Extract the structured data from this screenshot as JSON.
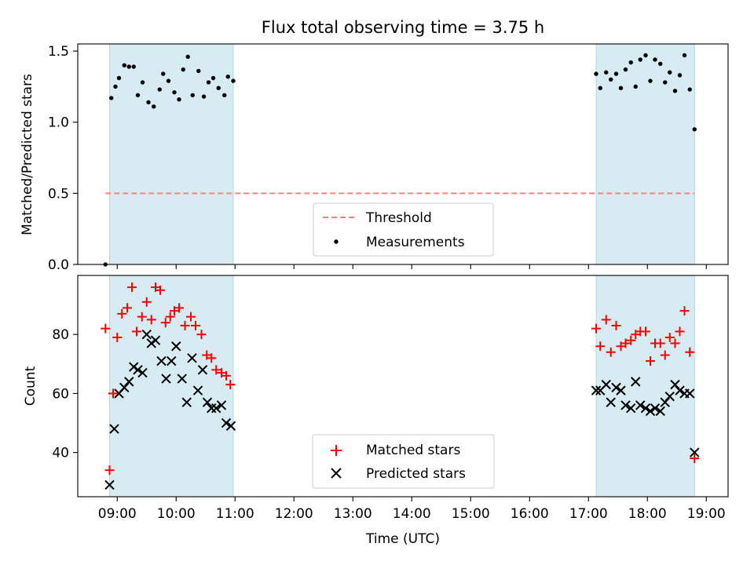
{
  "title": "Flux total observing time = 3.75 h",
  "colors": {
    "shade": "#add8e6",
    "threshold": "#ff7f7f",
    "measurement": "#000000",
    "matched": "#ff0000",
    "predicted": "#000000"
  },
  "chart_data": [
    {
      "type": "scatter",
      "panel": "top",
      "ylabel": "Matched/Predicted stars",
      "xlabel": "",
      "x_unit": "hours UTC",
      "xlim": [
        8.33,
        19.37
      ],
      "ylim": [
        0.0,
        1.55
      ],
      "y_ticks": [
        0.0,
        0.5,
        1.0,
        1.5
      ],
      "y_tick_labels": [
        "0.0",
        "0.5",
        "1.0",
        "1.5"
      ],
      "shaded_intervals": [
        [
          8.87,
          10.97
        ],
        [
          17.13,
          18.8
        ]
      ],
      "threshold": {
        "name": "Threshold",
        "value": 0.5,
        "x_range": [
          8.8,
          18.8
        ]
      },
      "legend": [
        "Threshold",
        "Measurements"
      ],
      "legend_position": "lower-center",
      "series": [
        {
          "name": "Measurements",
          "points": [
            [
              8.8,
              0.0
            ],
            [
              8.9,
              1.17
            ],
            [
              8.97,
              1.25
            ],
            [
              9.03,
              1.31
            ],
            [
              9.12,
              1.4
            ],
            [
              9.2,
              1.39
            ],
            [
              9.28,
              1.39
            ],
            [
              9.35,
              1.19
            ],
            [
              9.43,
              1.28
            ],
            [
              9.53,
              1.14
            ],
            [
              9.62,
              1.11
            ],
            [
              9.72,
              1.23
            ],
            [
              9.78,
              1.34
            ],
            [
              9.87,
              1.29
            ],
            [
              9.97,
              1.21
            ],
            [
              10.05,
              1.16
            ],
            [
              10.12,
              1.37
            ],
            [
              10.2,
              1.46
            ],
            [
              10.28,
              1.19
            ],
            [
              10.38,
              1.36
            ],
            [
              10.47,
              1.18
            ],
            [
              10.55,
              1.28
            ],
            [
              10.63,
              1.31
            ],
            [
              10.72,
              1.24
            ],
            [
              10.82,
              1.19
            ],
            [
              10.88,
              1.32
            ],
            [
              10.97,
              1.29
            ],
            [
              17.13,
              1.34
            ],
            [
              17.2,
              1.24
            ],
            [
              17.3,
              1.35
            ],
            [
              17.38,
              1.3
            ],
            [
              17.47,
              1.34
            ],
            [
              17.55,
              1.24
            ],
            [
              17.63,
              1.37
            ],
            [
              17.72,
              1.42
            ],
            [
              17.8,
              1.25
            ],
            [
              17.88,
              1.44
            ],
            [
              17.97,
              1.47
            ],
            [
              18.05,
              1.29
            ],
            [
              18.13,
              1.44
            ],
            [
              18.22,
              1.41
            ],
            [
              18.3,
              1.28
            ],
            [
              18.38,
              1.35
            ],
            [
              18.47,
              1.22
            ],
            [
              18.55,
              1.33
            ],
            [
              18.63,
              1.47
            ],
            [
              18.72,
              1.23
            ],
            [
              18.8,
              0.95
            ]
          ]
        }
      ]
    },
    {
      "type": "scatter",
      "panel": "bottom",
      "xlabel": "Time (UTC)",
      "ylabel": "Count",
      "x_unit": "hours UTC",
      "xlim": [
        8.33,
        19.37
      ],
      "ylim": [
        25,
        100
      ],
      "x_ticks": [
        9,
        10,
        11,
        12,
        13,
        14,
        15,
        16,
        17,
        18,
        19
      ],
      "x_tick_labels": [
        "09:00",
        "10:00",
        "11:00",
        "12:00",
        "13:00",
        "14:00",
        "15:00",
        "16:00",
        "17:00",
        "18:00",
        "19:00"
      ],
      "y_ticks": [
        40,
        60,
        80
      ],
      "y_tick_labels": [
        "40",
        "60",
        "80"
      ],
      "shaded_intervals": [
        [
          8.87,
          10.97
        ],
        [
          17.13,
          18.8
        ]
      ],
      "legend": [
        "Matched stars",
        "Predicted stars"
      ],
      "legend_position": "lower-center",
      "series": [
        {
          "name": "Matched stars",
          "marker": "plus",
          "points": [
            [
              8.8,
              82
            ],
            [
              8.87,
              34
            ],
            [
              8.93,
              60
            ],
            [
              9.0,
              79
            ],
            [
              9.08,
              87
            ],
            [
              9.17,
              89
            ],
            [
              9.25,
              96
            ],
            [
              9.33,
              81
            ],
            [
              9.42,
              86
            ],
            [
              9.5,
              91
            ],
            [
              9.58,
              85
            ],
            [
              9.65,
              96
            ],
            [
              9.73,
              95
            ],
            [
              9.82,
              84
            ],
            [
              9.9,
              86
            ],
            [
              9.97,
              88
            ],
            [
              10.05,
              89
            ],
            [
              10.15,
              83
            ],
            [
              10.25,
              86
            ],
            [
              10.33,
              83
            ],
            [
              10.43,
              80
            ],
            [
              10.52,
              73
            ],
            [
              10.6,
              72
            ],
            [
              10.68,
              68
            ],
            [
              10.77,
              67
            ],
            [
              10.85,
              66
            ],
            [
              10.92,
              63
            ],
            [
              17.13,
              82
            ],
            [
              17.2,
              76
            ],
            [
              17.3,
              85
            ],
            [
              17.38,
              74
            ],
            [
              17.47,
              83
            ],
            [
              17.55,
              76
            ],
            [
              17.63,
              77
            ],
            [
              17.72,
              78
            ],
            [
              17.8,
              80
            ],
            [
              17.88,
              81
            ],
            [
              17.97,
              81
            ],
            [
              18.05,
              71
            ],
            [
              18.13,
              77
            ],
            [
              18.22,
              77
            ],
            [
              18.3,
              73
            ],
            [
              18.38,
              79
            ],
            [
              18.47,
              77
            ],
            [
              18.55,
              81
            ],
            [
              18.63,
              88
            ],
            [
              18.72,
              74
            ],
            [
              18.8,
              38
            ]
          ]
        },
        {
          "name": "Predicted stars",
          "marker": "x",
          "points": [
            [
              8.87,
              29
            ],
            [
              8.95,
              48
            ],
            [
              9.03,
              60
            ],
            [
              9.12,
              62
            ],
            [
              9.2,
              64
            ],
            [
              9.28,
              69
            ],
            [
              9.35,
              68
            ],
            [
              9.43,
              67
            ],
            [
              9.5,
              80
            ],
            [
              9.58,
              77
            ],
            [
              9.65,
              78
            ],
            [
              9.75,
              71
            ],
            [
              9.83,
              65
            ],
            [
              9.92,
              71
            ],
            [
              10.0,
              76
            ],
            [
              10.1,
              65
            ],
            [
              10.18,
              57
            ],
            [
              10.27,
              72
            ],
            [
              10.37,
              61
            ],
            [
              10.45,
              68
            ],
            [
              10.53,
              57
            ],
            [
              10.6,
              55
            ],
            [
              10.68,
              55
            ],
            [
              10.77,
              56
            ],
            [
              10.85,
              50
            ],
            [
              10.93,
              49
            ],
            [
              17.13,
              61
            ],
            [
              17.2,
              61
            ],
            [
              17.3,
              63
            ],
            [
              17.38,
              57
            ],
            [
              17.47,
              62
            ],
            [
              17.55,
              61
            ],
            [
              17.63,
              56
            ],
            [
              17.72,
              55
            ],
            [
              17.8,
              64
            ],
            [
              17.88,
              56
            ],
            [
              17.97,
              55
            ],
            [
              18.05,
              54
            ],
            [
              18.13,
              55
            ],
            [
              18.22,
              54
            ],
            [
              18.3,
              57
            ],
            [
              18.38,
              59
            ],
            [
              18.47,
              63
            ],
            [
              18.55,
              61
            ],
            [
              18.63,
              60
            ],
            [
              18.72,
              60
            ],
            [
              18.8,
              40
            ]
          ]
        }
      ]
    }
  ]
}
